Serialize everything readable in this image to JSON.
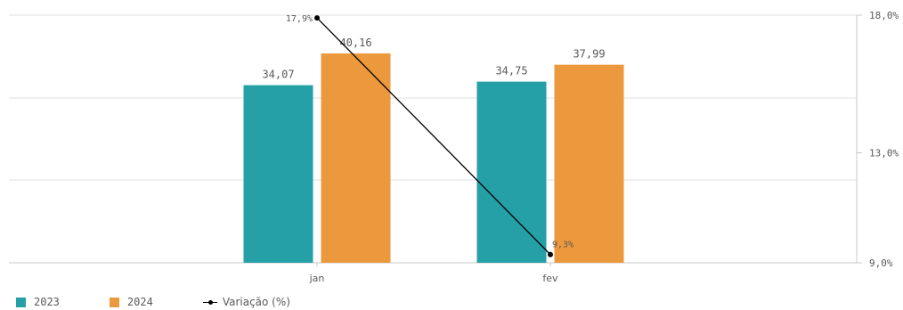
{
  "chart_data": {
    "type": "bar",
    "categories": [
      "jan",
      "fev"
    ],
    "series": [
      {
        "name": "2023",
        "kind": "bar",
        "values": [
          34.07,
          34.75
        ],
        "labels": [
          "34,07",
          "34,75"
        ],
        "color": "#26A0A7"
      },
      {
        "name": "2024",
        "kind": "bar",
        "values": [
          40.16,
          37.99
        ],
        "labels": [
          "40,16",
          "37,99"
        ],
        "color": "#EC983D"
      },
      {
        "name": "Variação (%)",
        "kind": "line",
        "axis": "right",
        "values": [
          17.9,
          9.3
        ],
        "labels": [
          "17,9%",
          "9,3%"
        ],
        "color": "#000000"
      }
    ],
    "right_axis": {
      "ticks": [
        "18,0%",
        "13,0%",
        "9,0%"
      ],
      "tick_values": [
        18.0,
        13.0,
        9.0
      ],
      "range": [
        9.0,
        18.0
      ]
    },
    "grid": true,
    "legend": "bottom-left"
  }
}
